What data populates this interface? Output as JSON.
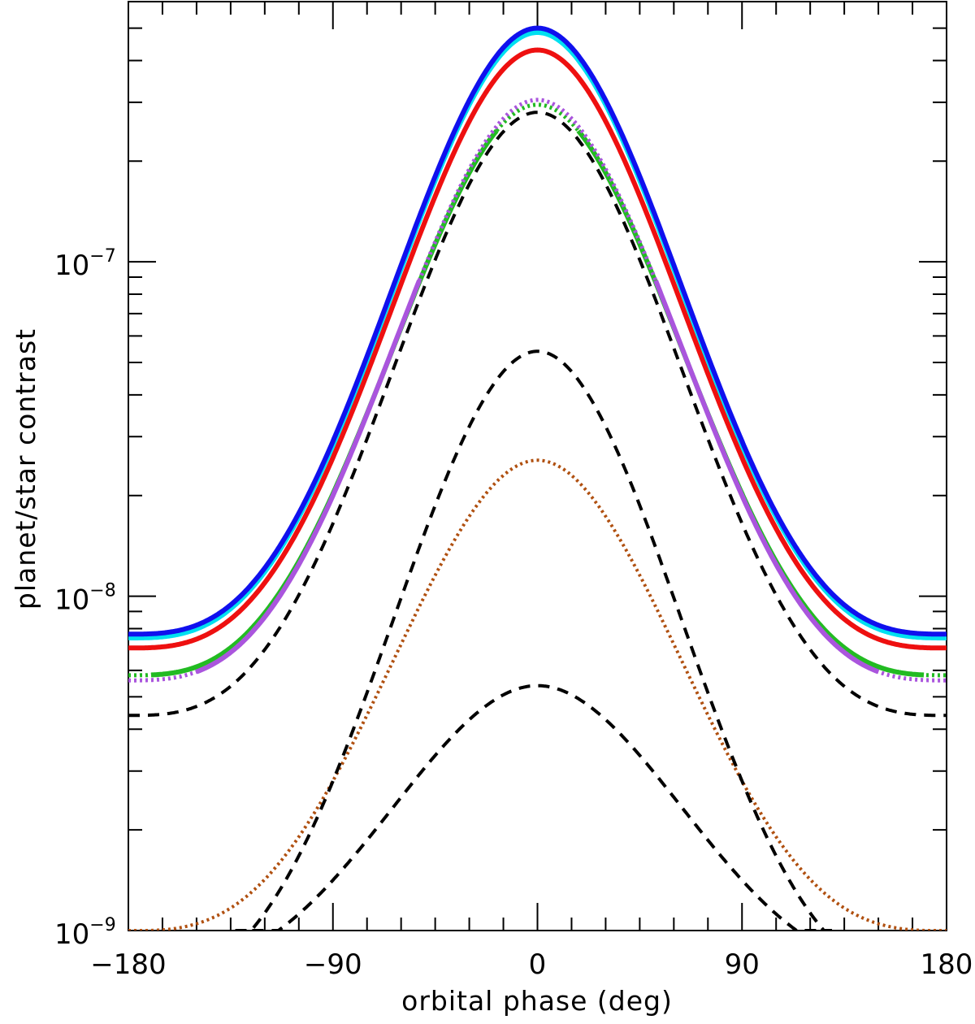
{
  "chart_data": {
    "type": "line",
    "xlabel": "orbital phase (deg)",
    "ylabel": "planet/star contrast",
    "xlim": [
      -180,
      180
    ],
    "ylim": [
      1e-09,
      6e-07
    ],
    "yscale": "log",
    "x_ticks": [
      {
        "value": -180,
        "label": "−180"
      },
      {
        "value": -90,
        "label": "−90"
      },
      {
        "value": 0,
        "label": "0"
      },
      {
        "value": 90,
        "label": "90"
      },
      {
        "value": 180,
        "label": "180"
      }
    ],
    "y_ticks": [
      {
        "value": 1e-09,
        "base": "10",
        "exp": "−9"
      },
      {
        "value": 1e-08,
        "base": "10",
        "exp": "−8"
      },
      {
        "value": 1e-07,
        "base": "10",
        "exp": "−7"
      }
    ],
    "series": [
      {
        "name": "blue",
        "color": "#1010ee",
        "style": "solid",
        "peak": 5e-07,
        "min": 7.7e-09
      },
      {
        "name": "cyan",
        "color": "#00e0f0",
        "style": "solid",
        "peak": 4.85e-07,
        "min": 7.5e-09
      },
      {
        "name": "red",
        "color": "#ee1010",
        "style": "solid",
        "peak": 4.3e-07,
        "min": 7e-09
      },
      {
        "name": "purple",
        "color": "#aa55dd",
        "style": "dotted-solid",
        "peak": 3.05e-07,
        "min": 5.6e-09
      },
      {
        "name": "green",
        "color": "#22bb22",
        "style": "dotted-solid",
        "peak": 2.95e-07,
        "min": 5.8e-09
      },
      {
        "name": "black-dash-1",
        "color": "#000000",
        "style": "dashed",
        "peak": 2.8e-07,
        "min": 4.4e-09
      },
      {
        "name": "black-dash-2",
        "color": "#000000",
        "style": "dashed",
        "peak": 5.4e-08,
        "x_at_floor": 126
      },
      {
        "name": "brown-dotted",
        "color": "#b05010",
        "style": "dotted",
        "peak": 2.55e-08,
        "x_at_floor": 171
      },
      {
        "name": "black-dash-3",
        "color": "#000000",
        "style": "dashed",
        "peak": 5.4e-09,
        "x_at_floor": 114
      }
    ]
  }
}
